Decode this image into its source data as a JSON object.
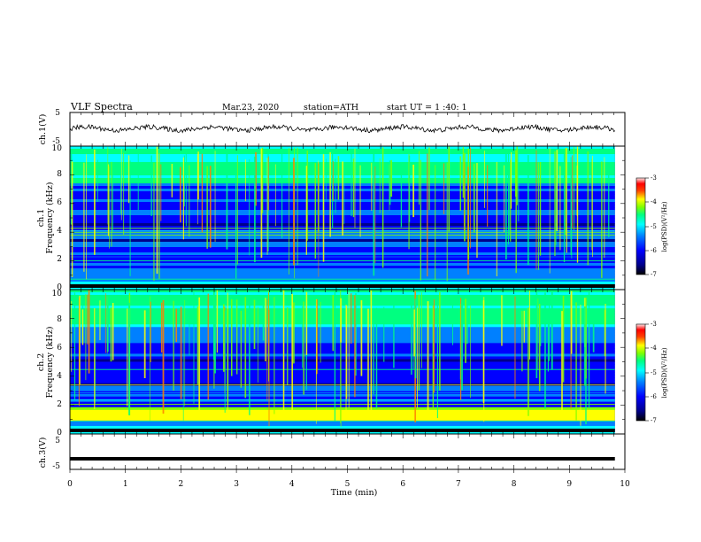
{
  "header": {
    "title": "VLF  Spectra",
    "date": "Mar.23, 2020",
    "station": "station=ATH",
    "start": "start  UT =   1 :40: 1"
  },
  "chart_data": [
    {
      "type": "line",
      "panel": "ch1-waveform",
      "ylabel": "ch.1(V)",
      "ylim": [
        -5,
        5
      ],
      "yticks": [
        "5",
        "-5"
      ],
      "series": [
        {
          "values": [
            0.4,
            0.1,
            -0.2,
            0.3,
            -0.1,
            0.2,
            -0.3,
            0.1,
            0.0,
            -0.2,
            0.2,
            0.1,
            -0.1,
            0.3,
            -0.2,
            0.0,
            0.1,
            -0.3,
            0.2,
            0.0,
            -0.4
          ]
        }
      ]
    },
    {
      "type": "heatmap",
      "panel": "ch1-spectrogram",
      "ylabel": [
        "ch.1",
        "Frequency  (kHz)"
      ],
      "ylim": [
        0,
        10
      ],
      "yticks": [
        "0",
        "2",
        "4",
        "6",
        "8",
        "10"
      ],
      "colorbar": {
        "label": "log(PSD)(V²/Hz)",
        "range": [
          -7,
          -3
        ],
        "ticks": [
          "-3",
          "-4",
          "-5",
          "-6",
          "-7"
        ]
      }
    },
    {
      "type": "heatmap",
      "panel": "ch2-spectrogram",
      "ylabel": [
        "ch.2",
        "Frequency  (kHz)"
      ],
      "ylim": [
        0,
        10
      ],
      "yticks": [
        "0",
        "2",
        "4",
        "6",
        "8",
        "10"
      ],
      "colorbar": {
        "label": "log(PSD)(V²/Hz)",
        "range": [
          -7,
          -3
        ],
        "ticks": [
          "-3",
          "-4",
          "-5",
          "-6",
          "-7"
        ]
      }
    },
    {
      "type": "line",
      "panel": "ch3-waveform",
      "ylabel": "ch.3(V)",
      "ylim": [
        -5,
        5
      ],
      "yticks": [
        "5",
        "-5"
      ],
      "series": [
        {
          "values": [
            -2,
            -2,
            -2,
            -2,
            -2,
            -2,
            -2,
            -2,
            -2,
            -2,
            -2
          ]
        }
      ]
    }
  ],
  "x_axis": {
    "label": "Time  (min)",
    "range": [
      0,
      10
    ],
    "ticks": [
      "0",
      "1",
      "2",
      "3",
      "4",
      "5",
      "6",
      "7",
      "8",
      "9",
      "10"
    ]
  },
  "colors": {
    "background": "#ffffff",
    "axis": "#000000",
    "colormap": [
      "#000000",
      "#00008b",
      "#0000ff",
      "#0080ff",
      "#00ffff",
      "#00ff80",
      "#80ff00",
      "#ffff00",
      "#ff8000",
      "#ff0000",
      "#ffffff"
    ]
  }
}
